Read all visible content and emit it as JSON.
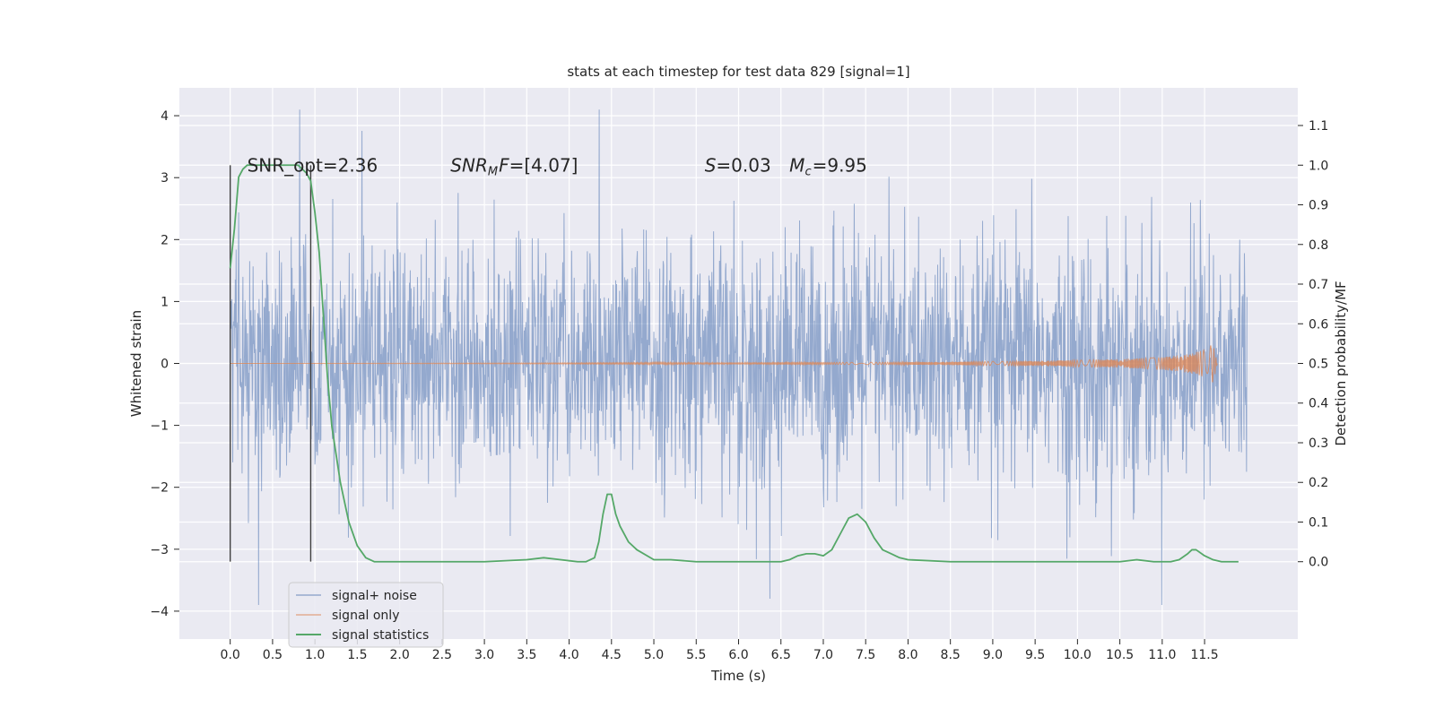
{
  "chart_data": {
    "type": "line",
    "title": "stats at each timestep for test data 829 [signal=1]",
    "xlabel": "Time (s)",
    "ylabel": "Whitened strain",
    "ylabel_right": "Detection probability/MF",
    "xlim": [
      -0.6,
      12.6
    ],
    "ylim": [
      -4.45,
      4.45
    ],
    "ylim_right": [
      -0.195,
      1.195
    ],
    "x_ticks": [
      "0.0",
      "0.5",
      "1.0",
      "1.5",
      "2.0",
      "2.5",
      "3.0",
      "3.5",
      "4.0",
      "4.5",
      "5.0",
      "5.5",
      "6.0",
      "6.5",
      "7.0",
      "7.5",
      "8.0",
      "8.5",
      "9.0",
      "9.5",
      "10.0",
      "10.5",
      "11.0",
      "11.5"
    ],
    "y_ticks": [
      4,
      3,
      2,
      1,
      0,
      -1,
      -2,
      -3,
      -4
    ],
    "y_tick_labels": [
      "4",
      "3",
      "2",
      "1",
      "0",
      "−1",
      "−2",
      "−3",
      "−4"
    ],
    "y_right_ticks": [
      1.1,
      1.0,
      0.9,
      0.8,
      0.7,
      0.6,
      0.5,
      0.4,
      0.3,
      0.2,
      0.1,
      0.0
    ],
    "y_right_tick_labels": [
      "1.1",
      "1.0",
      "0.9",
      "0.8",
      "0.7",
      "0.6",
      "0.5",
      "0.4",
      "0.3",
      "0.2",
      "0.1",
      "0.0"
    ],
    "grid": true,
    "legend_position": "lower-left",
    "annotations": [
      {
        "text": "SNR_opt=2.36",
        "x": 0.2,
        "y": 3.2
      },
      {
        "text": "SNR_MF=[4.07]",
        "x": 2.6,
        "y": 3.2
      },
      {
        "text": "S=0.03",
        "x": 5.6,
        "y": 3.2
      },
      {
        "text": "M_c=9.95",
        "x": 6.6,
        "y": 3.2
      }
    ],
    "vlines": [
      {
        "x": 0.0,
        "ymin": -3.2,
        "ymax": 3.2
      },
      {
        "x": 0.95,
        "ymin": -3.2,
        "ymax": 3.2
      }
    ],
    "series": [
      {
        "name": "signal+ noise",
        "color": "#4c72b0",
        "kind": "noise",
        "x_range": [
          0.0,
          12.0
        ],
        "typical_amplitude": 1.3,
        "spike_amplitude_max": 4.1
      },
      {
        "name": "signal only",
        "color": "#dd8452",
        "kind": "chirp",
        "x_range": [
          0.0,
          11.65
        ],
        "envelope": [
          [
            0.0,
            0.0
          ],
          [
            8.0,
            0.02
          ],
          [
            9.5,
            0.04
          ],
          [
            10.5,
            0.07
          ],
          [
            11.0,
            0.1
          ],
          [
            11.3,
            0.15
          ],
          [
            11.5,
            0.22
          ],
          [
            11.6,
            0.32
          ],
          [
            11.65,
            0.0
          ]
        ]
      },
      {
        "name": "signal statistics",
        "color": "#55a868",
        "kind": "line",
        "axis": "right",
        "x": [
          0.0,
          0.05,
          0.1,
          0.15,
          0.2,
          0.3,
          0.5,
          0.7,
          0.8,
          0.85,
          0.9,
          0.95,
          1.0,
          1.05,
          1.1,
          1.15,
          1.2,
          1.3,
          1.4,
          1.5,
          1.6,
          1.7,
          2.0,
          2.3,
          3.0,
          3.5,
          3.7,
          3.9,
          4.1,
          4.2,
          4.3,
          4.35,
          4.4,
          4.45,
          4.5,
          4.55,
          4.6,
          4.7,
          4.8,
          5.0,
          5.2,
          5.5,
          6.0,
          6.5,
          6.6,
          6.7,
          6.8,
          6.9,
          7.0,
          7.1,
          7.2,
          7.3,
          7.4,
          7.5,
          7.6,
          7.7,
          7.8,
          7.9,
          8.0,
          8.5,
          9.0,
          10.0,
          10.5,
          10.7,
          10.9,
          11.1,
          11.2,
          11.3,
          11.35,
          11.4,
          11.5,
          11.6,
          11.7,
          11.9
        ],
        "y": [
          0.74,
          0.84,
          0.97,
          0.99,
          1.0,
          1.0,
          1.0,
          1.0,
          1.0,
          0.99,
          0.98,
          0.96,
          0.88,
          0.78,
          0.62,
          0.46,
          0.34,
          0.2,
          0.1,
          0.04,
          0.01,
          0.0,
          0.0,
          0.0,
          0.0,
          0.005,
          0.01,
          0.005,
          0.0,
          0.0,
          0.01,
          0.05,
          0.12,
          0.17,
          0.17,
          0.12,
          0.09,
          0.05,
          0.03,
          0.005,
          0.005,
          0.0,
          0.0,
          0.0,
          0.005,
          0.015,
          0.02,
          0.02,
          0.015,
          0.03,
          0.07,
          0.11,
          0.12,
          0.1,
          0.06,
          0.03,
          0.02,
          0.01,
          0.005,
          0.0,
          0.0,
          0.0,
          0.0,
          0.005,
          0.0,
          0.0,
          0.005,
          0.02,
          0.03,
          0.03,
          0.015,
          0.005,
          0.0,
          0.0
        ]
      }
    ]
  }
}
